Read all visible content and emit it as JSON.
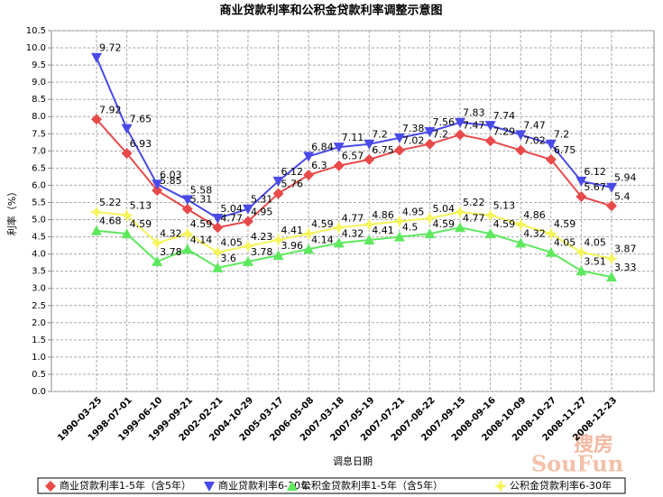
{
  "chart_data": {
    "type": "line",
    "title": "商业贷款利率和公积金贷款利率调整示意图",
    "y_label": "利率（%）",
    "x_label": "调息日期",
    "watermark": [
      "搜房",
      "SouFun"
    ],
    "categories": [
      "1990-03-25",
      "1998-07-01",
      "1999-06-10",
      "1999-09-21",
      "2002-02-21",
      "2004-10-29",
      "2005-03-17",
      "2006-05-08",
      "2007-03-18",
      "2007-05-19",
      "2007-07-21",
      "2007-08-22",
      "2007-09-15",
      "2008-09-16",
      "2008-10-09",
      "2008-10-27",
      "2008-11-27",
      "2008-12-23"
    ],
    "series": [
      {
        "name": "商业贷款利率1-5年（含5年）",
        "color": "#e84a4a",
        "marker": "diamond",
        "values": [
          7.92,
          6.93,
          5.85,
          5.31,
          4.77,
          4.95,
          5.76,
          6.3,
          6.57,
          6.75,
          7.02,
          7.2,
          7.47,
          7.29,
          7.02,
          6.75,
          5.67,
          5.4
        ]
      },
      {
        "name": "商业贷款利率6-30年",
        "color": "#4a4ae8",
        "marker": "triangle-down",
        "values": [
          9.72,
          7.65,
          6.03,
          5.58,
          5.04,
          5.31,
          6.12,
          6.84,
          7.11,
          7.2,
          7.38,
          7.56,
          7.83,
          7.74,
          7.47,
          7.2,
          6.12,
          5.94
        ]
      },
      {
        "name": "公积金贷款利率1-5年（含5年）",
        "color": "#5ee85e",
        "marker": "triangle-up",
        "values": [
          4.68,
          4.59,
          3.78,
          4.14,
          3.6,
          3.78,
          3.96,
          4.14,
          4.32,
          4.41,
          4.5,
          4.59,
          4.77,
          4.59,
          4.32,
          4.05,
          3.51,
          3.33
        ]
      },
      {
        "name": "公积金贷款利率6-30年",
        "color": "#f5f55a",
        "marker": "star",
        "values": [
          5.22,
          5.13,
          4.32,
          4.59,
          4.05,
          4.23,
          4.41,
          4.59,
          4.77,
          4.86,
          4.95,
          5.04,
          5.22,
          5.13,
          4.86,
          4.59,
          4.05,
          3.87
        ]
      }
    ],
    "ylim": [
      0,
      10.5
    ],
    "yticks": [
      {
        "value": 0,
        "label": "0.0"
      },
      0.5,
      {
        "value": 1,
        "label": "1.0"
      },
      1.5,
      {
        "value": 2,
        "label": "2.0"
      },
      2.5,
      {
        "value": 3,
        "label": "3.0"
      },
      3.5,
      {
        "value": 4,
        "label": "4.0"
      },
      4.5,
      {
        "value": 5,
        "label": "5.0"
      },
      5.5,
      {
        "value": 6,
        "label": "6.0"
      },
      6.5,
      {
        "value": 7,
        "label": "7.0"
      },
      7.5,
      {
        "value": 8,
        "label": "8.0"
      },
      8.5,
      {
        "value": 9,
        "label": "9.0"
      },
      9.5,
      {
        "value": 10,
        "label": "10.0"
      },
      10.5
    ],
    "grid": true
  }
}
